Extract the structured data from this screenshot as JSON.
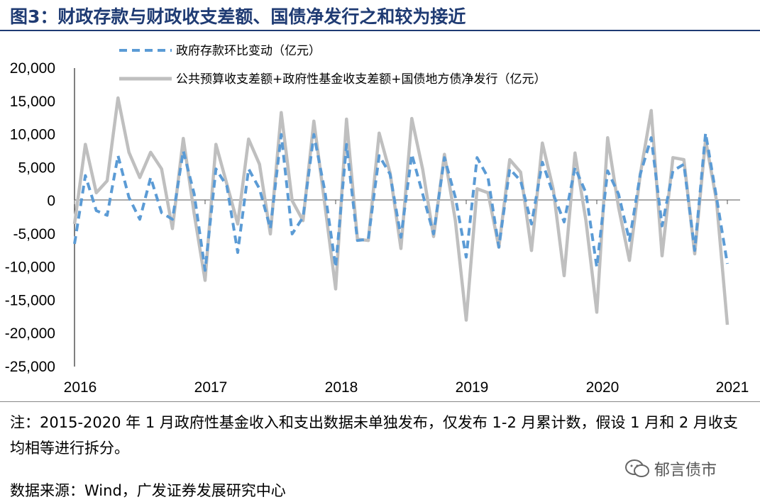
{
  "title": "图3：财政存款与财政收支差额、国债净发行之和较为接近",
  "note": "注：2015-2020 年 1 月政府性基金收入和支出数据未单独发布，仅发布 1-2 月累计数，假设 1 月和 2 月收支均相等进行拆分。",
  "source": "数据来源：Wind，广发证券发展研究中心",
  "watermark": "郁言债市",
  "chart_data": {
    "type": "line",
    "ylim": [
      -25000,
      20000
    ],
    "yticks": [
      20000,
      15000,
      10000,
      5000,
      0,
      -5000,
      -10000,
      -15000,
      -20000,
      -25000
    ],
    "ytick_labels": [
      "20,000",
      "15,000",
      "10,000",
      "5,000",
      "0",
      "-5,000",
      "-10,000",
      "-15,000",
      "-20,000",
      "-25,000"
    ],
    "xticks": [
      "2016",
      "2017",
      "2018",
      "2019",
      "2020",
      "2021"
    ],
    "x_start": "2016-01",
    "series": [
      {
        "name": "政府存款环比变动（亿元）",
        "style": "dashed",
        "color": "#5b9bd5",
        "values": [
          -6500,
          3800,
          -1500,
          -2200,
          6800,
          500,
          -2800,
          3500,
          -1800,
          -2800,
          7500,
          1000,
          -10500,
          4800,
          2200,
          -7800,
          4800,
          1800,
          -4200,
          10000,
          -5000,
          -2500,
          10000,
          1500,
          -10000,
          8500,
          -6000,
          -5800,
          6800,
          4000,
          -5500,
          7000,
          1000,
          -5000,
          6500,
          500,
          -8500,
          6500,
          3500,
          -7000,
          4800,
          3000,
          -3500,
          5800,
          1000,
          -3200,
          5000,
          1200,
          -10000,
          4500,
          1000,
          -6000,
          4000,
          9500,
          -3800,
          4500,
          5500,
          -7500,
          10200,
          500,
          -9500
        ]
      },
      {
        "name": "公共预算收支差额+政府性基金收支差额+国债地方债净发行（亿元）",
        "style": "solid",
        "color": "#bfbfbf",
        "values": [
          -3500,
          8500,
          1200,
          3000,
          15500,
          7300,
          3500,
          7300,
          4800,
          -4200,
          9400,
          -2000,
          -12000,
          8500,
          2500,
          -3500,
          9300,
          5500,
          -5000,
          13300,
          0,
          -3000,
          12000,
          -500,
          -13300,
          12300,
          -5800,
          -6000,
          10200,
          4200,
          -7200,
          12400,
          4700,
          -5400,
          7000,
          -3000,
          -18000,
          1800,
          1200,
          -7000,
          6200,
          4300,
          -7500,
          8700,
          1700,
          -11300,
          7200,
          -3000,
          -16800,
          9500,
          -1000,
          -9000,
          4000,
          13600,
          -8300,
          6500,
          6200,
          -8000,
          9200,
          0,
          -18700
        ]
      }
    ]
  }
}
